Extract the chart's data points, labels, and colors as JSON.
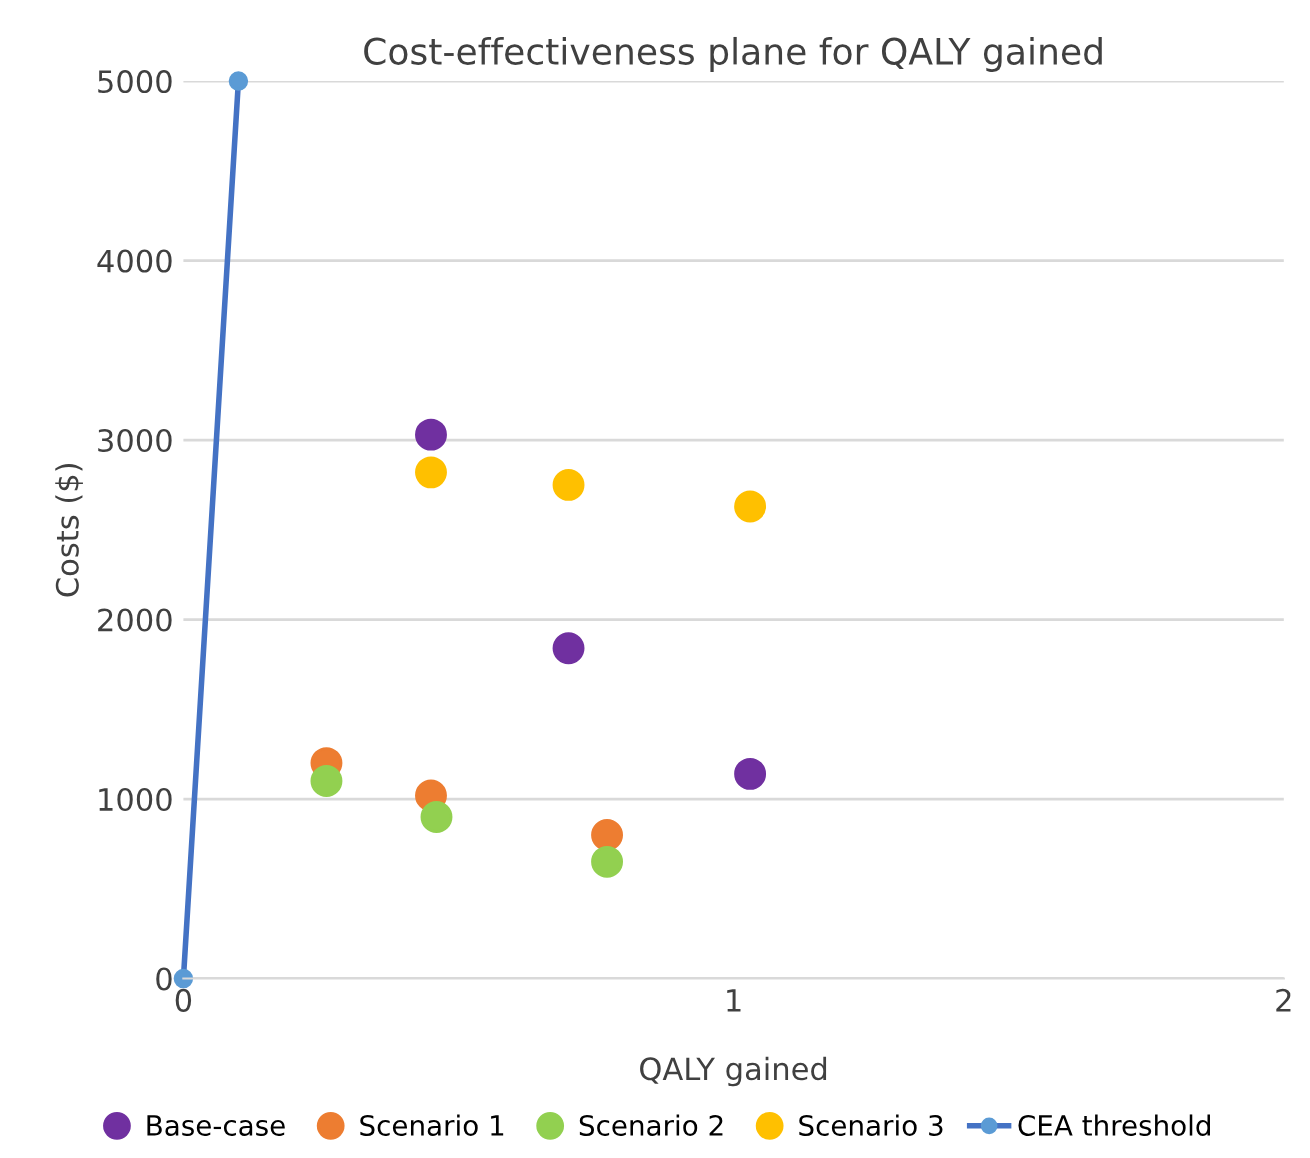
{
  "chart_data": {
    "type": "scatter",
    "title": "Cost-effectiveness plane for QALY gained",
    "xlabel": "QALY gained",
    "ylabel": "Costs ($)",
    "xlim": [
      0,
      2
    ],
    "xticks": [
      0,
      1,
      2
    ],
    "ylim": [
      0,
      5000
    ],
    "yticks": [
      0,
      1000,
      2000,
      3000,
      4000,
      5000
    ],
    "grid": "y",
    "legend": "bottom",
    "marker": "circle",
    "series": [
      {
        "name": "Base-case",
        "color": "#7030a0",
        "x": [
          0.45,
          0.7,
          1.03
        ],
        "values": [
          3030,
          1840,
          1140
        ]
      },
      {
        "name": "Scenario 1",
        "color": "#ed7d31",
        "x": [
          0.26,
          0.45,
          0.77
        ],
        "values": [
          1200,
          1020,
          800
        ]
      },
      {
        "name": "Scenario 2",
        "color": "#92d050",
        "x": [
          0.26,
          0.46,
          0.77
        ],
        "values": [
          1100,
          900,
          650
        ]
      },
      {
        "name": "Scenario 3",
        "color": "#ffc000",
        "x": [
          0.45,
          0.7,
          1.03
        ],
        "values": [
          2820,
          2750,
          2630
        ]
      },
      {
        "name": "CEA threshold",
        "type": "line",
        "color": "#4472c4",
        "x": [
          0,
          0.1
        ],
        "values": [
          0,
          5000
        ]
      }
    ]
  }
}
